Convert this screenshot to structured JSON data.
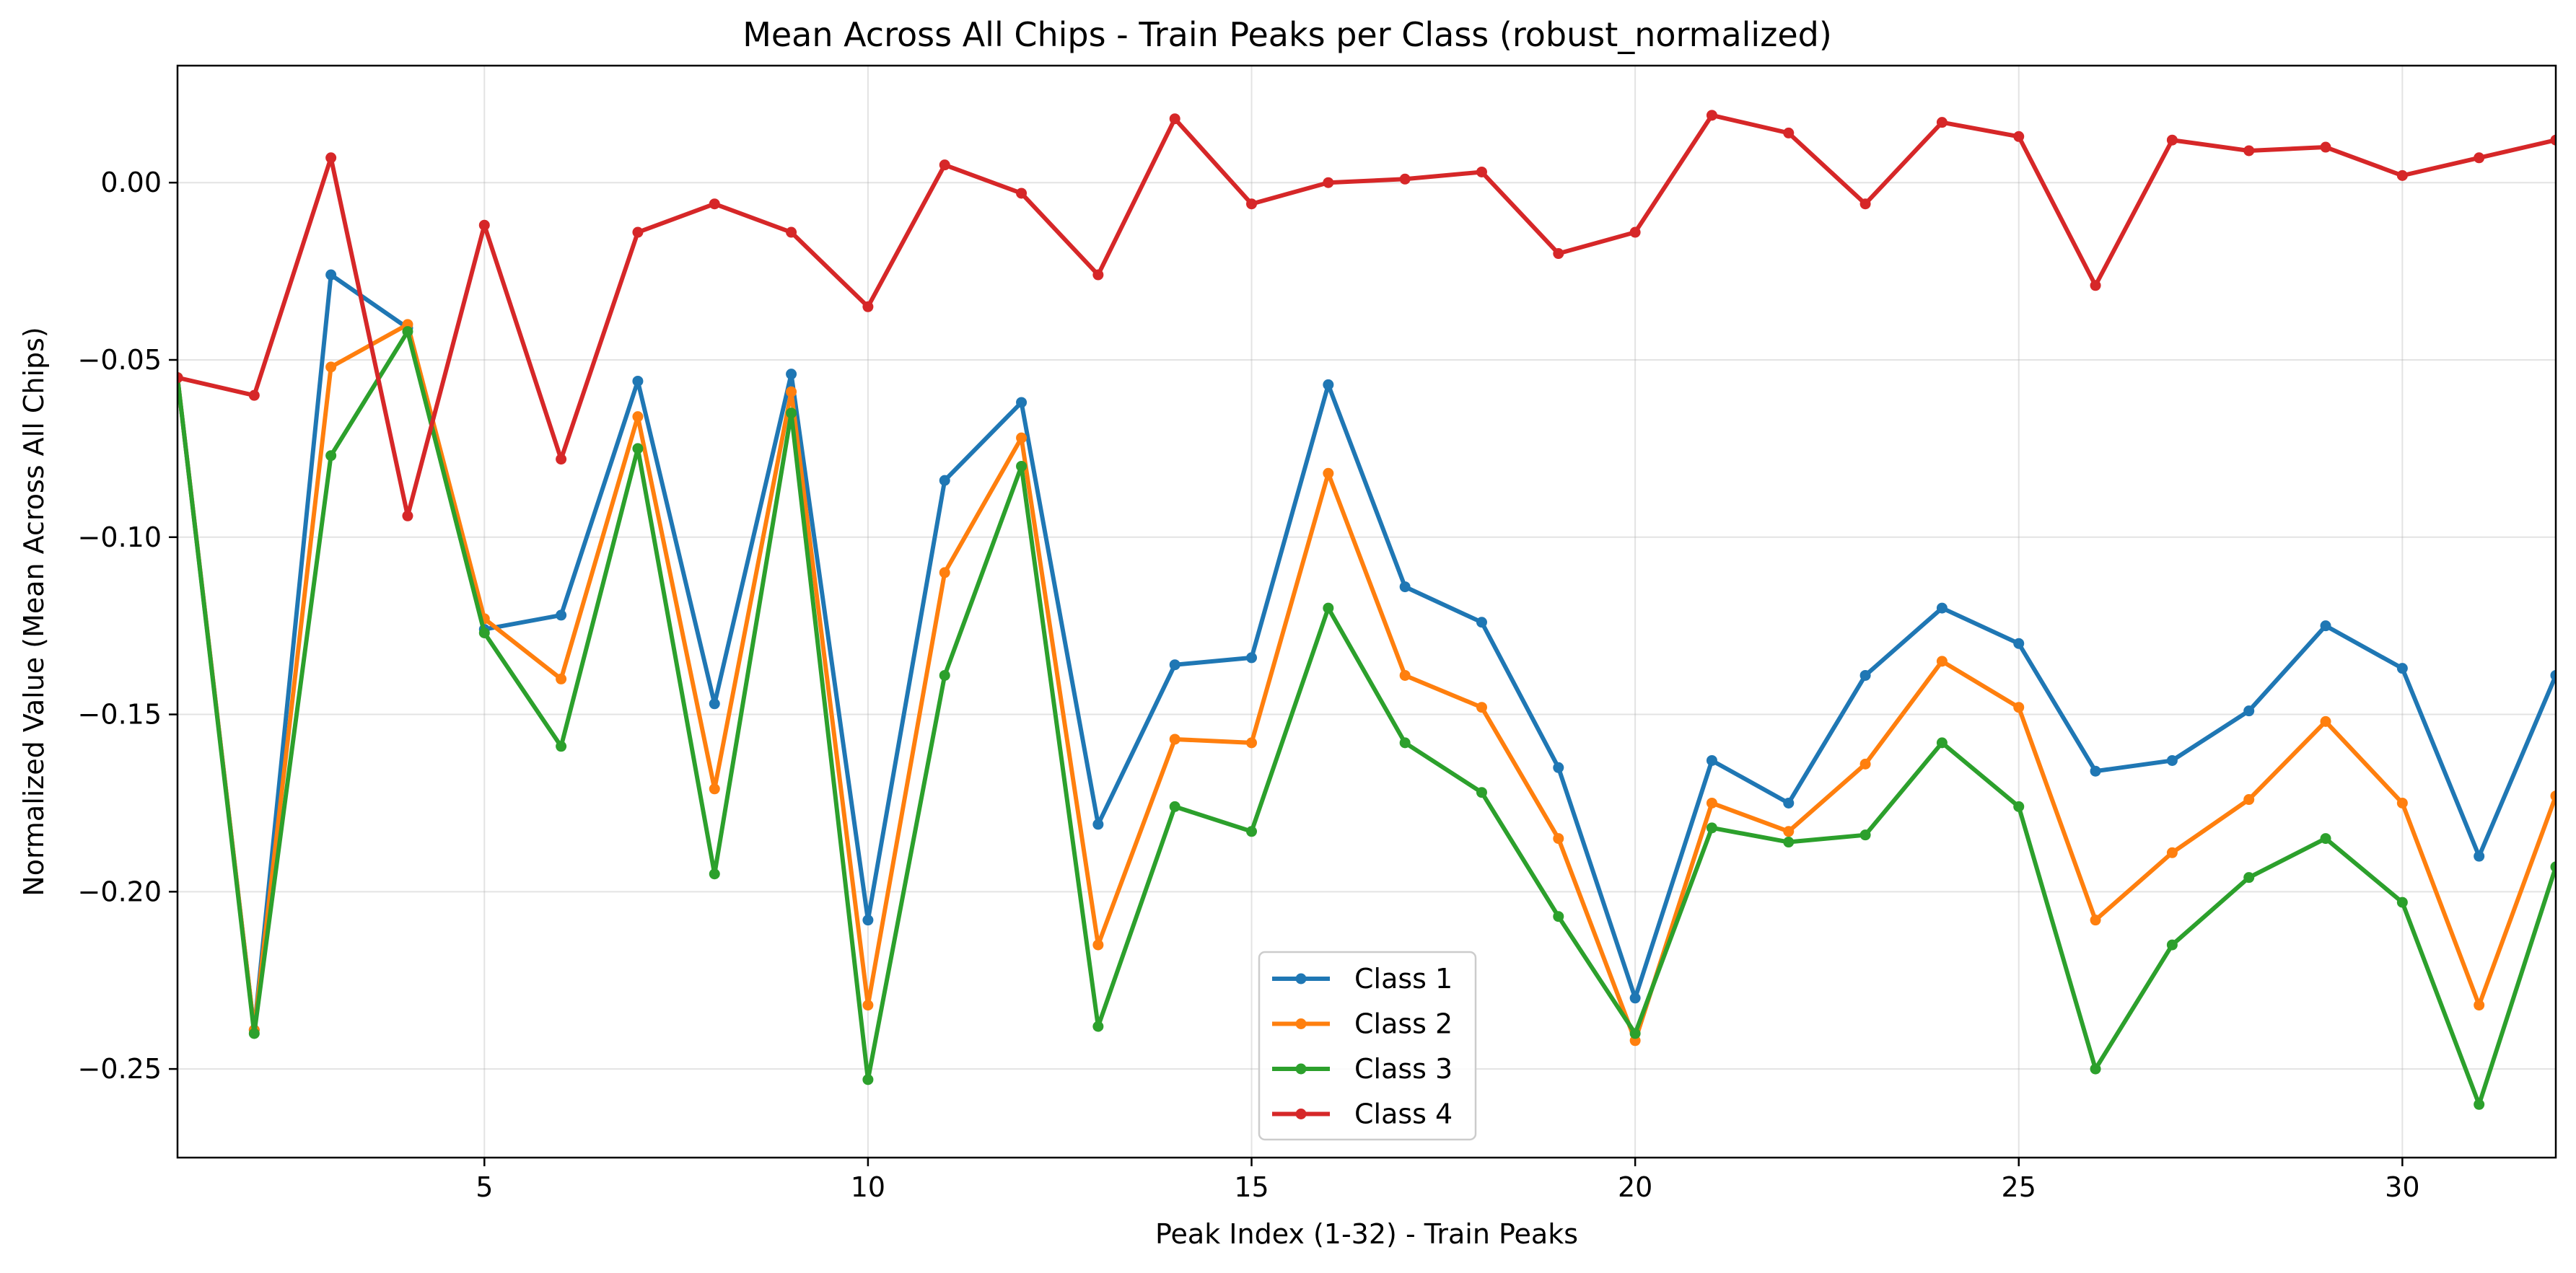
{
  "chart_data": {
    "type": "line",
    "title": "Mean Across All Chips - Train Peaks per Class (robust_normalized)",
    "xlabel": "Peak Index (1-32) - Train Peaks",
    "ylabel": "Normalized Value (Mean Across All Chips)",
    "xlim": [
      1,
      32
    ],
    "ylim": [
      -0.275,
      0.033
    ],
    "xticks": [
      5,
      10,
      15,
      20,
      25,
      30
    ],
    "xtick_labels": [
      "5",
      "10",
      "15",
      "20",
      "25",
      "30"
    ],
    "yticks": [
      -0.25,
      -0.2,
      -0.15,
      -0.1,
      -0.05,
      0.0
    ],
    "ytick_labels": [
      "−0.25",
      "−0.20",
      "−0.15",
      "−0.10",
      "−0.05",
      "0.00"
    ],
    "grid": true,
    "legend_position": "lower-center",
    "x": [
      1,
      2,
      3,
      4,
      5,
      6,
      7,
      8,
      9,
      10,
      11,
      12,
      13,
      14,
      15,
      16,
      17,
      18,
      19,
      20,
      21,
      22,
      23,
      24,
      25,
      26,
      27,
      28,
      29,
      30,
      31,
      32
    ],
    "series": [
      {
        "name": "Class 1",
        "color": "#1f77b4",
        "values": [
          -0.055,
          -0.239,
          -0.026,
          -0.041,
          -0.126,
          -0.122,
          -0.056,
          -0.147,
          -0.054,
          -0.208,
          -0.084,
          -0.062,
          -0.181,
          -0.136,
          -0.134,
          -0.057,
          -0.114,
          -0.124,
          -0.165,
          -0.23,
          -0.163,
          -0.175,
          -0.139,
          -0.12,
          -0.13,
          -0.166,
          -0.163,
          -0.149,
          -0.125,
          -0.137,
          -0.19,
          -0.139
        ]
      },
      {
        "name": "Class 2",
        "color": "#ff7f0e",
        "values": [
          -0.055,
          -0.239,
          -0.052,
          -0.04,
          -0.123,
          -0.14,
          -0.066,
          -0.171,
          -0.059,
          -0.232,
          -0.11,
          -0.072,
          -0.215,
          -0.157,
          -0.158,
          -0.082,
          -0.139,
          -0.148,
          -0.185,
          -0.242,
          -0.175,
          -0.183,
          -0.164,
          -0.135,
          -0.148,
          -0.208,
          -0.189,
          -0.174,
          -0.152,
          -0.175,
          -0.232,
          -0.173
        ]
      },
      {
        "name": "Class 3",
        "color": "#2ca02c",
        "values": [
          -0.055,
          -0.24,
          -0.077,
          -0.042,
          -0.127,
          -0.159,
          -0.075,
          -0.195,
          -0.065,
          -0.253,
          -0.139,
          -0.08,
          -0.238,
          -0.176,
          -0.183,
          -0.12,
          -0.158,
          -0.172,
          -0.207,
          -0.24,
          -0.182,
          -0.186,
          -0.184,
          -0.158,
          -0.176,
          -0.25,
          -0.215,
          -0.196,
          -0.185,
          -0.203,
          -0.26,
          -0.193
        ]
      },
      {
        "name": "Class 4",
        "color": "#d62728",
        "values": [
          -0.055,
          -0.06,
          0.007,
          -0.094,
          -0.012,
          -0.078,
          -0.014,
          -0.006,
          -0.014,
          -0.035,
          0.005,
          -0.003,
          -0.026,
          0.018,
          -0.006,
          0.0,
          0.001,
          0.003,
          -0.02,
          -0.014,
          0.019,
          0.014,
          -0.006,
          0.017,
          0.013,
          -0.029,
          0.012,
          0.009,
          0.01,
          0.002,
          0.007,
          0.012
        ]
      }
    ]
  }
}
